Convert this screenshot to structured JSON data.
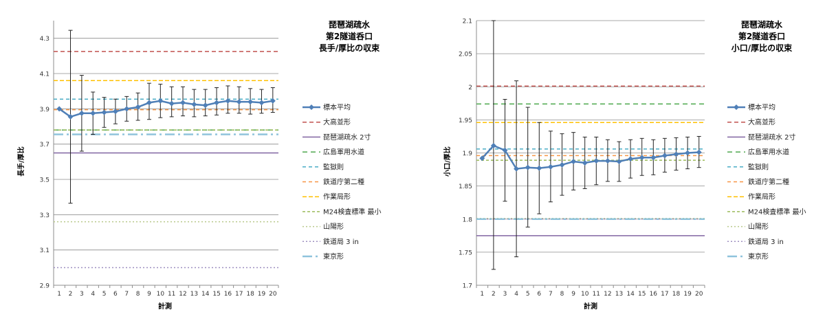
{
  "chart_data": [
    {
      "type": "line",
      "title": [
        "琵琶湖疏水",
        "第2隧道呑口",
        "長手/厚比の収束"
      ],
      "xlabel": "計測",
      "ylabel": "長手/厚比",
      "ylim": [
        2.9,
        4.4
      ],
      "yticks": [
        "2.9",
        "3.1",
        "3.3",
        "3.5",
        "3.7",
        "3.9",
        "4.1",
        "4.3"
      ],
      "x": [
        1,
        2,
        3,
        4,
        5,
        6,
        7,
        8,
        9,
        10,
        11,
        12,
        13,
        14,
        15,
        16,
        17,
        18,
        19,
        20
      ],
      "grid": "horizontal",
      "legend_position": "right",
      "series": {
        "name": "標本平均",
        "color": "#4f7fb7",
        "values": [
          3.9,
          3.855,
          3.875,
          3.875,
          3.88,
          3.885,
          3.9,
          3.91,
          3.935,
          3.945,
          3.93,
          3.935,
          3.925,
          3.92,
          3.935,
          3.945,
          3.94,
          3.94,
          3.935,
          3.945
        ],
        "err_low": [
          3.9,
          3.365,
          3.66,
          3.755,
          3.795,
          3.815,
          3.83,
          3.835,
          3.84,
          3.85,
          3.855,
          3.86,
          3.855,
          3.86,
          3.865,
          3.875,
          3.875,
          3.87,
          3.875,
          3.88
        ],
        "err_high": [
          3.9,
          4.345,
          4.09,
          3.995,
          3.965,
          3.955,
          3.97,
          3.99,
          4.045,
          4.04,
          4.025,
          4.025,
          4.01,
          4.01,
          4.02,
          4.03,
          4.025,
          4.015,
          4.01,
          4.02
        ]
      },
      "reference_lines": [
        {
          "name": "大高並形",
          "value": 4.225,
          "color": "#c0504d",
          "dash": "6,4",
          "width": 1.5
        },
        {
          "name": "琵琶湖疏水 2寸",
          "value": 3.65,
          "color": "#8064a2",
          "dash": "",
          "width": 1.5
        },
        {
          "name": "広島軍用水道",
          "value": 3.78,
          "color": "#4ea84e",
          "dash": "7,5",
          "width": 1.5
        },
        {
          "name": "監獄則",
          "value": 3.955,
          "color": "#4aacc6",
          "dash": "5,4",
          "width": 1.5
        },
        {
          "name": "鉄道庁第二種",
          "value": 3.895,
          "color": "#f79646",
          "dash": "5,4",
          "width": 1.5
        },
        {
          "name": "作業局形",
          "value": 4.06,
          "color": "#ffc000",
          "dash": "6,3",
          "width": 1.5
        },
        {
          "name": "M24検査標準 最小",
          "value": 3.78,
          "color": "#9bbb59",
          "dash": "4,3",
          "width": 1.5
        },
        {
          "name": "山陽形",
          "value": 3.26,
          "color": "#b8c98a",
          "dash": "2,3",
          "width": 1.5
        },
        {
          "name": "鉄道局 3 in",
          "value": 3.0,
          "color": "#9e8fc0",
          "dash": "2,3",
          "width": 1.5
        },
        {
          "name": "東京形",
          "value": 3.755,
          "color": "#8fc3dc",
          "dash": "14,5,3,5",
          "width": 2.5
        }
      ]
    },
    {
      "type": "line",
      "title": [
        "琵琶湖疏水",
        "第2隧道呑口",
        "小口/厚比の収束"
      ],
      "xlabel": "計測",
      "ylabel": "小口/厚比",
      "ylim": [
        1.7,
        2.1
      ],
      "yticks": [
        "1.7",
        "1.75",
        "1.8",
        "1.85",
        "1.9",
        "1.95",
        "2",
        "2.05",
        "2.1"
      ],
      "x": [
        1,
        2,
        3,
        4,
        5,
        6,
        7,
        8,
        9,
        10,
        11,
        12,
        13,
        14,
        15,
        16,
        17,
        18,
        19,
        20
      ],
      "grid": "horizontal",
      "legend_position": "right",
      "series": {
        "name": "標本平均",
        "color": "#4f7fb7",
        "values": [
          1.892,
          1.911,
          1.904,
          1.876,
          1.878,
          1.877,
          1.879,
          1.882,
          1.887,
          1.885,
          1.888,
          1.888,
          1.887,
          1.891,
          1.893,
          1.893,
          1.896,
          1.898,
          1.9,
          1.901
        ],
        "err_low": [
          1.892,
          1.724,
          1.827,
          1.743,
          1.788,
          1.808,
          1.826,
          1.836,
          1.844,
          1.846,
          1.852,
          1.857,
          1.857,
          1.862,
          1.866,
          1.867,
          1.871,
          1.874,
          1.876,
          1.878
        ],
        "err_high": [
          1.892,
          2.1,
          1.981,
          2.009,
          1.969,
          1.946,
          1.933,
          1.929,
          1.931,
          1.924,
          1.924,
          1.92,
          1.917,
          1.92,
          1.922,
          1.92,
          1.922,
          1.923,
          1.924,
          1.925
        ]
      },
      "reference_lines": [
        {
          "name": "大高並形",
          "value": 2.001,
          "color": "#c0504d",
          "dash": "6,4",
          "width": 1.5
        },
        {
          "name": "琵琶湖疏水 2寸",
          "value": 1.775,
          "color": "#8064a2",
          "dash": "",
          "width": 1.5
        },
        {
          "name": "広島軍用水道",
          "value": 1.974,
          "color": "#4ea84e",
          "dash": "7,5",
          "width": 1.5
        },
        {
          "name": "監獄則",
          "value": 1.906,
          "color": "#4aacc6",
          "dash": "5,4",
          "width": 1.5
        },
        {
          "name": "鉄道庁第二種",
          "value": 1.896,
          "color": "#f79646",
          "dash": "5,4",
          "width": 1.5
        },
        {
          "name": "作業局形",
          "value": 1.946,
          "color": "#ffc000",
          "dash": "6,3",
          "width": 1.5
        },
        {
          "name": "M24検査標準 最小",
          "value": 1.889,
          "color": "#9bbb59",
          "dash": "4,3",
          "width": 1.5
        },
        {
          "name": "山陽形",
          "value": 1.801,
          "color": "#b8c98a",
          "dash": "2,3",
          "width": 1.5
        },
        {
          "name": "鉄道局 3 in",
          "value": 1.8,
          "color": "#9e8fc0",
          "dash": "2,3",
          "width": 1.5
        },
        {
          "name": "東京形",
          "value": 1.8,
          "color": "#8fc3dc",
          "dash": "14,5,3,5",
          "width": 2.5
        }
      ]
    }
  ]
}
